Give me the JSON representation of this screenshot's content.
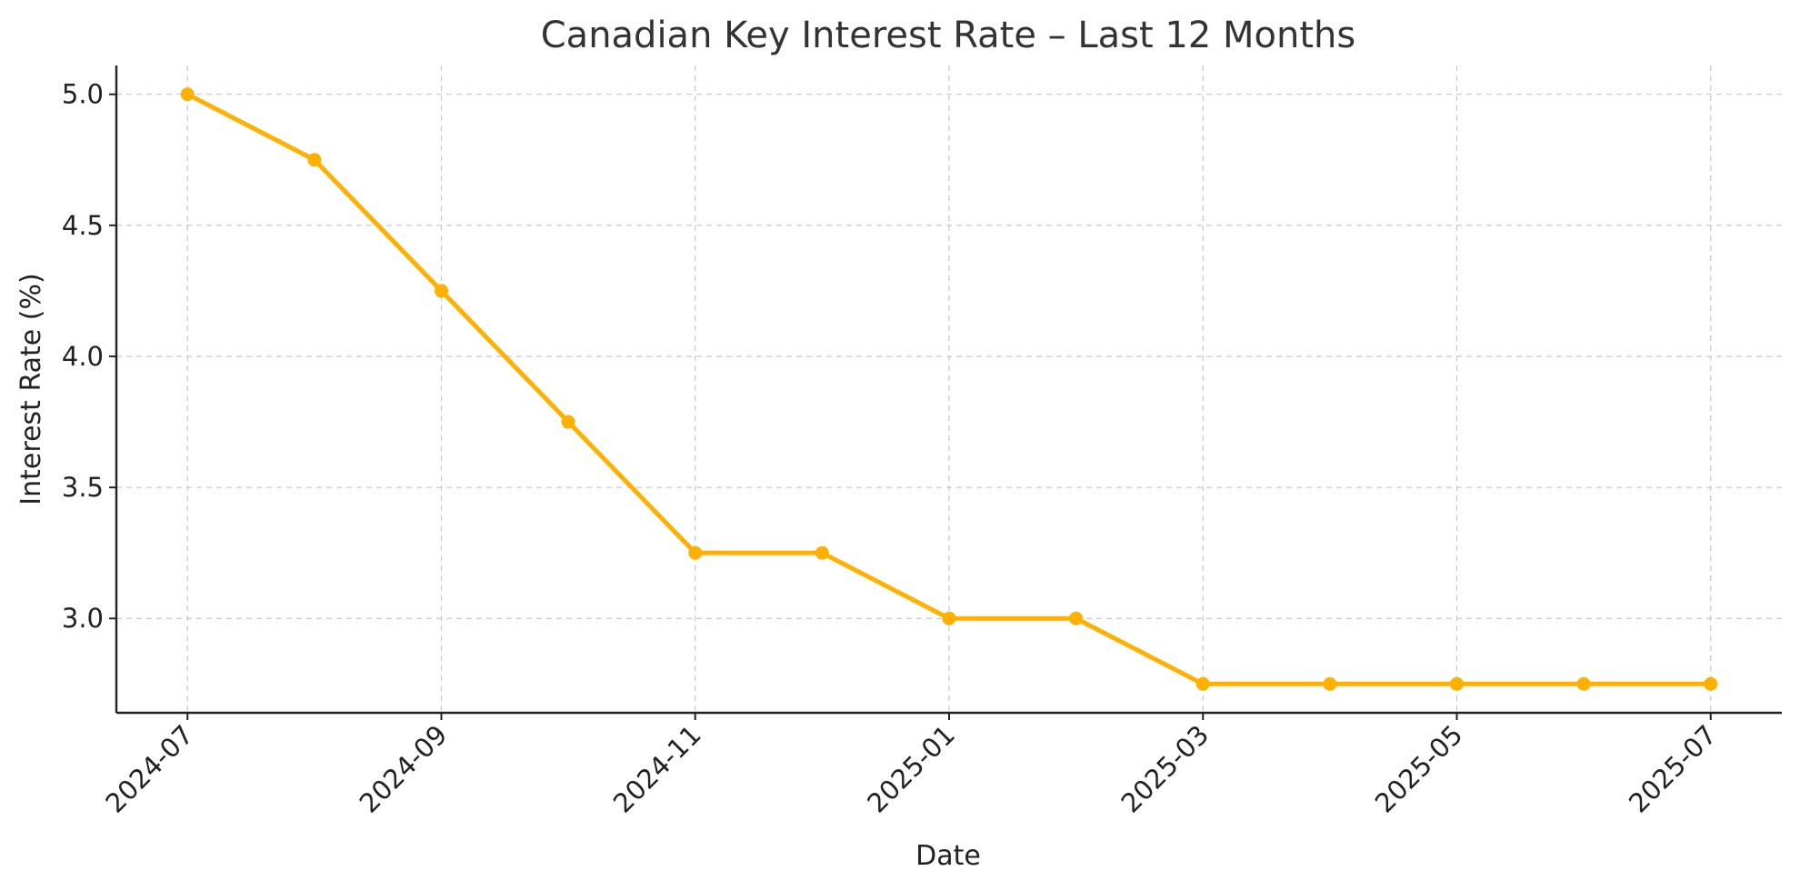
{
  "chart_data": {
    "type": "line",
    "title": "Canadian Key Interest Rate – Last 12 Months",
    "xlabel": "Date",
    "ylabel": "Interest Rate (%)",
    "x": [
      "2024-07",
      "2024-08",
      "2024-09",
      "2024-10",
      "2024-11",
      "2024-12",
      "2025-01",
      "2025-02",
      "2025-03",
      "2025-04",
      "2025-05",
      "2025-06",
      "2025-07"
    ],
    "series": [
      {
        "values": [
          5.0,
          4.75,
          4.25,
          3.75,
          3.25,
          3.25,
          3.0,
          3.0,
          2.75,
          2.75,
          2.75,
          2.75,
          2.75
        ],
        "color": "#FFB000"
      }
    ],
    "xticks": [
      "2024-07",
      "2024-09",
      "2024-11",
      "2025-01",
      "2025-03",
      "2025-05",
      "2025-07"
    ],
    "yticks": [
      3.0,
      3.5,
      4.0,
      4.5,
      5.0
    ],
    "ytick_labels": [
      "3.0",
      "3.5",
      "4.0",
      "4.5",
      "5.0"
    ],
    "ylim": [
      2.64,
      5.11
    ],
    "xlim": [
      "2024-06",
      "2025-07"
    ],
    "grid": true,
    "legend": "none"
  }
}
